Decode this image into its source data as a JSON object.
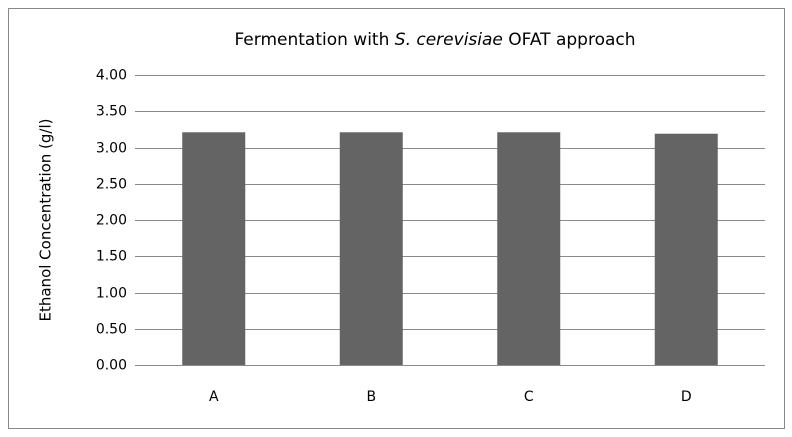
{
  "chart_data": {
    "type": "bar",
    "title": [
      "Fermentation with ",
      "S. cerevisiae",
      " OFAT approach"
    ],
    "y_label": "Ethanol Concentration (g/l)",
    "categories": [
      "A",
      "B",
      "C",
      "D"
    ],
    "values": [
      3.21,
      3.21,
      3.21,
      3.19
    ],
    "color": "#646464",
    "ylim": [
      0,
      4
    ],
    "yticks": [
      {
        "value": 0,
        "label": "0.00"
      },
      {
        "value": 0.5,
        "label": "0.50"
      },
      {
        "value": 1,
        "label": "1.00"
      },
      {
        "value": 1.5,
        "label": "1.50"
      },
      {
        "value": 2,
        "label": "2.00"
      },
      {
        "value": 2.5,
        "label": "2.50"
      },
      {
        "value": 3,
        "label": "3.00"
      },
      {
        "value": 3.5,
        "label": "3.50"
      },
      {
        "value": 4,
        "label": "4.00"
      }
    ],
    "grid": true
  }
}
